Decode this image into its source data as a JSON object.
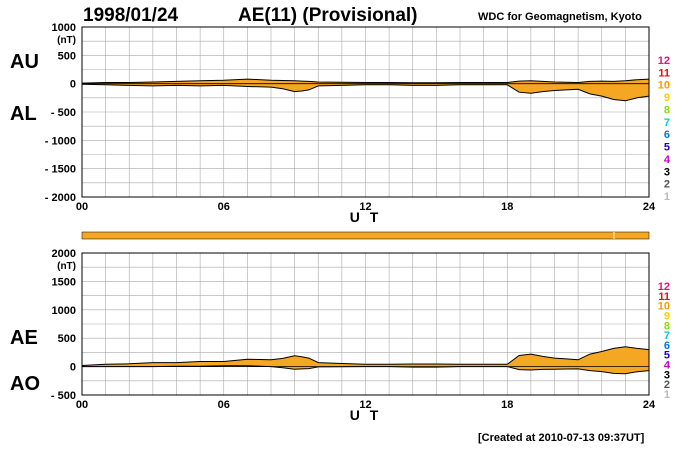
{
  "header": {
    "date": "1998/01/24",
    "title": "AE(11) (Provisional)",
    "source": "WDC for Geomagnetism, Kyoto"
  },
  "footer": {
    "created": "[Created at 2010-07-13 09:37UT]"
  },
  "legend": {
    "numbers": [
      "12",
      "11",
      "10",
      "9",
      "8",
      "7",
      "6",
      "5",
      "4",
      "3",
      "2",
      "1"
    ],
    "colors": [
      "#e8127c",
      "#dd1111",
      "#ff9900",
      "#ffd000",
      "#88dd00",
      "#00ccdd",
      "#0077ee",
      "#2200cc",
      "#cc00cc",
      "#000000",
      "#555555",
      "#bbbbbb"
    ]
  },
  "colors": {
    "fill": "#f5a623",
    "line": "#000000",
    "grid": "#aaaaaa",
    "bar": "#f5a623"
  },
  "chart_data": [
    {
      "type": "area",
      "labels": {
        "upper": "AU",
        "lower": "AL"
      },
      "unit": "(nT)",
      "xlabel": "U T",
      "xlim": [
        0,
        24
      ],
      "ylim": [
        -2000,
        1000
      ],
      "xticks": [
        "00",
        "06",
        "12",
        "18",
        "24"
      ],
      "yticks": [
        {
          "v": 1000,
          "t": "1000"
        },
        {
          "v": 500,
          "t": "500"
        },
        {
          "v": 0,
          "t": "0"
        },
        {
          "v": -500,
          "t": "- 500"
        },
        {
          "v": -1000,
          "t": "- 1000"
        },
        {
          "v": -1500,
          "t": "- 1500"
        },
        {
          "v": -2000,
          "t": "- 2000"
        }
      ],
      "grid": true,
      "x_hours": [
        0,
        1,
        2,
        3,
        4,
        5,
        6,
        7,
        8,
        8.5,
        9,
        9.3,
        9.6,
        10,
        11,
        12,
        13,
        14,
        15,
        16,
        17,
        18,
        18.5,
        19,
        19.5,
        20,
        20.5,
        21,
        21.5,
        22,
        22.5,
        23,
        23.5,
        24
      ],
      "series": [
        {
          "name": "AU",
          "values": [
            10,
            20,
            20,
            30,
            40,
            50,
            60,
            80,
            60,
            55,
            50,
            45,
            40,
            30,
            25,
            20,
            20,
            15,
            15,
            20,
            20,
            20,
            45,
            50,
            40,
            30,
            25,
            20,
            40,
            45,
            40,
            50,
            70,
            80
          ]
        },
        {
          "name": "AL",
          "values": [
            -10,
            -20,
            -30,
            -40,
            -30,
            -40,
            -30,
            -50,
            -60,
            -90,
            -140,
            -130,
            -110,
            -40,
            -30,
            -20,
            -20,
            -30,
            -30,
            -20,
            -20,
            -20,
            -150,
            -170,
            -140,
            -120,
            -110,
            -100,
            -180,
            -220,
            -280,
            -300,
            -250,
            -220
          ]
        }
      ]
    },
    {
      "type": "area",
      "labels": {
        "upper": "AE",
        "lower": "AO"
      },
      "unit": "(nT)",
      "xlabel": "U T",
      "xlim": [
        0,
        24
      ],
      "ylim": [
        -500,
        2000
      ],
      "xticks": [
        "00",
        "06",
        "12",
        "18",
        "24"
      ],
      "yticks": [
        {
          "v": 2000,
          "t": "2000"
        },
        {
          "v": 1500,
          "t": "1500"
        },
        {
          "v": 1000,
          "t": "1000"
        },
        {
          "v": 500,
          "t": "500"
        },
        {
          "v": 0,
          "t": "0"
        },
        {
          "v": -500,
          "t": "- 500"
        }
      ],
      "grid": true,
      "x_hours": [
        0,
        1,
        2,
        3,
        4,
        5,
        6,
        7,
        8,
        8.5,
        9,
        9.3,
        9.6,
        10,
        11,
        12,
        13,
        14,
        15,
        16,
        17,
        18,
        18.5,
        19,
        19.5,
        20,
        20.5,
        21,
        21.5,
        22,
        22.5,
        23,
        23.5,
        24
      ],
      "series": [
        {
          "name": "AE",
          "values": [
            20,
            40,
            50,
            70,
            70,
            90,
            90,
            130,
            120,
            145,
            190,
            175,
            150,
            70,
            55,
            40,
            40,
            45,
            45,
            40,
            40,
            40,
            195,
            220,
            180,
            150,
            135,
            120,
            220,
            265,
            320,
            350,
            320,
            300
          ]
        },
        {
          "name": "AO",
          "values": [
            0,
            0,
            0,
            0,
            5,
            5,
            15,
            15,
            0,
            -20,
            -45,
            -40,
            -35,
            -5,
            -2,
            0,
            0,
            -8,
            -8,
            0,
            0,
            0,
            -52,
            -60,
            -50,
            -45,
            -42,
            -40,
            -70,
            -88,
            -120,
            -125,
            -90,
            -70
          ]
        }
      ]
    }
  ]
}
